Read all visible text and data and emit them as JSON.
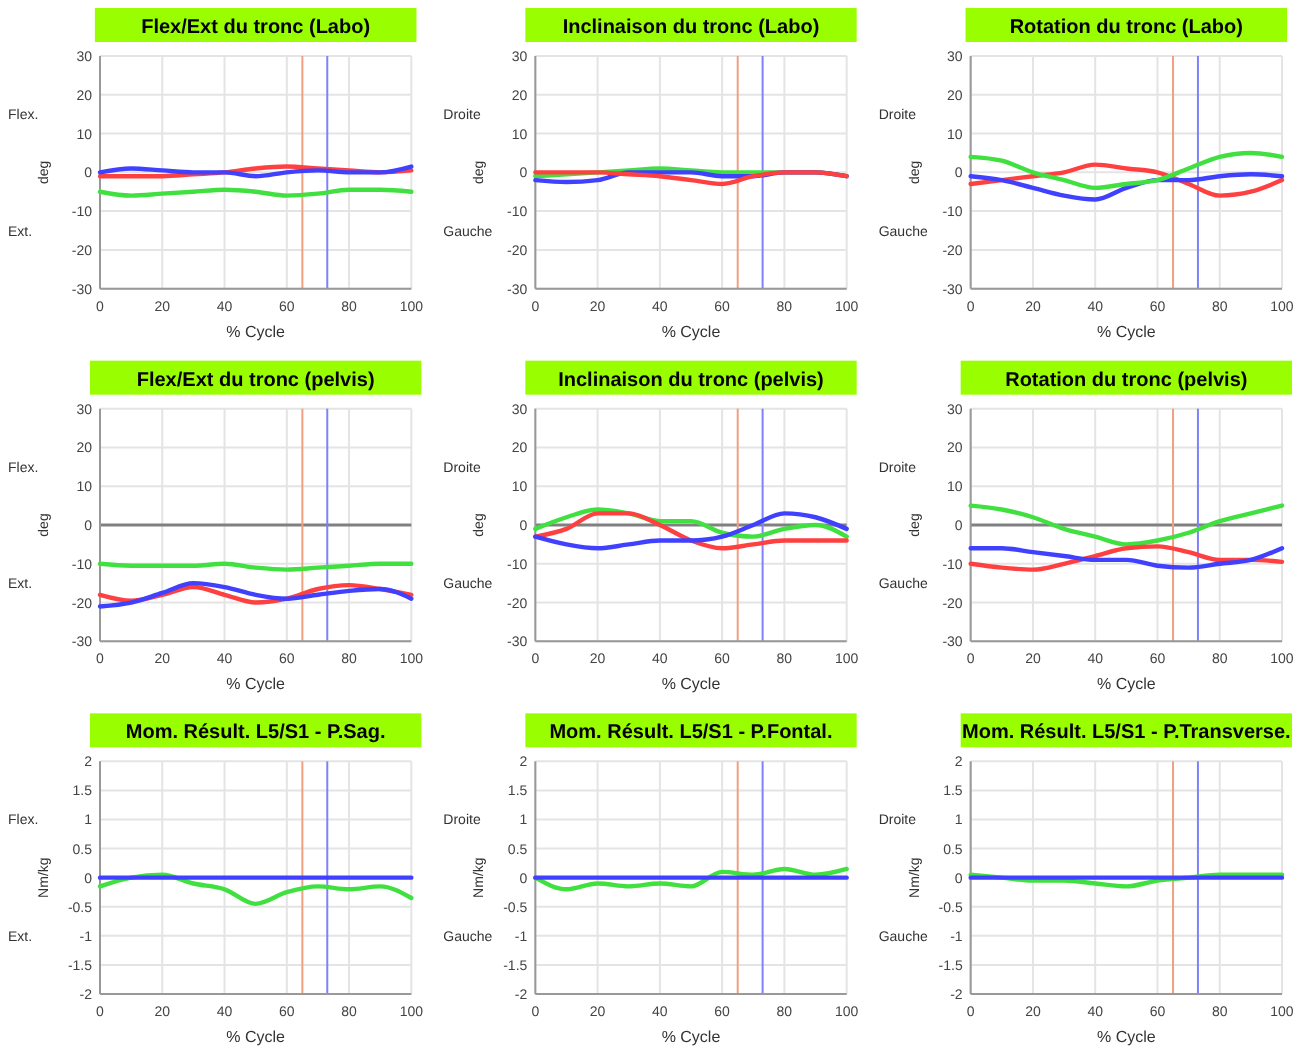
{
  "chart_data": [
    {
      "type": "line",
      "title": "Flex/Ext du tronc (Labo)",
      "xlabel": "% Cycle",
      "ylabel": "deg",
      "annotations": [
        "Flex.",
        "Ext."
      ],
      "x": [
        0,
        10,
        20,
        30,
        40,
        50,
        60,
        70,
        80,
        90,
        100
      ],
      "xlim": [
        0,
        100
      ],
      "xticks": [
        0,
        20,
        40,
        60,
        80,
        100
      ],
      "ylim": [
        -30,
        30
      ],
      "yticks": [
        -30,
        -20,
        -10,
        0,
        10,
        20,
        30
      ],
      "grid": true,
      "line_style": "solid",
      "ref_lines": [
        {
          "axis": "x",
          "value": 65,
          "color": "#f0a080"
        },
        {
          "axis": "x",
          "value": 73,
          "color": "#8080ff"
        }
      ],
      "series": [
        {
          "color": "#ff4040",
          "values": [
            -1,
            -1,
            -1,
            -0.5,
            0,
            1,
            1.5,
            1,
            0.5,
            0,
            0.5
          ]
        },
        {
          "color": "#4040ff",
          "values": [
            0,
            1,
            0.5,
            0,
            0,
            -1,
            0,
            0.5,
            0,
            0,
            1.5
          ]
        },
        {
          "color": "#40e040",
          "values": [
            -5,
            -6,
            -5.5,
            -5,
            -4.5,
            -5,
            -6,
            -5.5,
            -4.5,
            -4.5,
            -5
          ]
        }
      ]
    },
    {
      "type": "line",
      "title": "Inclinaison du tronc (Labo)",
      "xlabel": "% Cycle",
      "ylabel": "deg",
      "annotations": [
        "Droite",
        "Gauche"
      ],
      "x": [
        0,
        10,
        20,
        30,
        40,
        50,
        60,
        70,
        80,
        90,
        100
      ],
      "xlim": [
        0,
        100
      ],
      "xticks": [
        0,
        20,
        40,
        60,
        80,
        100
      ],
      "ylim": [
        -30,
        30
      ],
      "yticks": [
        -30,
        -20,
        -10,
        0,
        10,
        20,
        30
      ],
      "grid": true,
      "line_style": "solid",
      "ref_lines": [
        {
          "axis": "x",
          "value": 65,
          "color": "#f0a080"
        },
        {
          "axis": "x",
          "value": 73,
          "color": "#8080ff"
        }
      ],
      "series": [
        {
          "color": "#40e040",
          "values": [
            -1,
            -0.5,
            0,
            0.5,
            1,
            0.5,
            0,
            0,
            0,
            0,
            -1
          ]
        },
        {
          "color": "#4040ff",
          "values": [
            -2,
            -2.5,
            -2,
            0,
            0,
            0,
            -1,
            -1,
            0,
            0,
            -1
          ]
        },
        {
          "color": "#ff4040",
          "values": [
            0,
            0,
            0,
            -0.5,
            -1,
            -2,
            -3,
            -1,
            0,
            0,
            -1
          ]
        }
      ]
    },
    {
      "type": "line",
      "title": "Rotation du tronc (Labo)",
      "xlabel": "% Cycle",
      "ylabel": "deg",
      "annotations": [
        "Droite",
        "Gauche"
      ],
      "x": [
        0,
        10,
        20,
        30,
        40,
        50,
        60,
        70,
        80,
        90,
        100
      ],
      "xlim": [
        0,
        100
      ],
      "xticks": [
        0,
        20,
        40,
        60,
        80,
        100
      ],
      "ylim": [
        -30,
        30
      ],
      "yticks": [
        -30,
        -20,
        -10,
        0,
        10,
        20,
        30
      ],
      "grid": true,
      "line_style": "solid",
      "ref_lines": [
        {
          "axis": "x",
          "value": 65,
          "color": "#f0a080"
        },
        {
          "axis": "x",
          "value": 73,
          "color": "#8080ff"
        }
      ],
      "series": [
        {
          "color": "#ff4040",
          "values": [
            -3,
            -2,
            -1,
            0,
            2,
            1,
            0,
            -3,
            -6,
            -5,
            -2
          ]
        },
        {
          "color": "#4040ff",
          "values": [
            -1,
            -2,
            -4,
            -6,
            -7,
            -4,
            -2,
            -2,
            -1,
            -0.5,
            -1
          ]
        },
        {
          "color": "#40e040",
          "values": [
            4,
            3,
            0,
            -2,
            -4,
            -3,
            -2,
            1,
            4,
            5,
            4
          ]
        }
      ]
    },
    {
      "type": "line",
      "title": "Flex/Ext du tronc (pelvis)",
      "xlabel": "% Cycle",
      "ylabel": "deg",
      "annotations": [
        "Flex.",
        "Ext."
      ],
      "x": [
        0,
        10,
        20,
        30,
        40,
        50,
        60,
        70,
        80,
        90,
        100
      ],
      "xlim": [
        0,
        100
      ],
      "xticks": [
        0,
        20,
        40,
        60,
        80,
        100
      ],
      "ylim": [
        -30,
        30
      ],
      "yticks": [
        -30,
        -20,
        -10,
        0,
        10,
        20,
        30
      ],
      "grid": true,
      "line_style": "solid",
      "ref_lines": [
        {
          "axis": "y",
          "value": 0,
          "color": "#808080"
        },
        {
          "axis": "x",
          "value": 65,
          "color": "#f0a080"
        },
        {
          "axis": "x",
          "value": 73,
          "color": "#8080ff"
        }
      ],
      "series": [
        {
          "color": "#40e040",
          "values": [
            -10,
            -10.5,
            -10.5,
            -10.5,
            -10,
            -11,
            -11.5,
            -11,
            -10.5,
            -10,
            -10
          ]
        },
        {
          "color": "#ff4040",
          "values": [
            -18,
            -19.5,
            -18,
            -16,
            -18,
            -20,
            -19,
            -16.5,
            -15.5,
            -16.5,
            -18
          ]
        },
        {
          "color": "#4040ff",
          "values": [
            -21,
            -20,
            -17.5,
            -15,
            -16,
            -18,
            -19,
            -18,
            -17,
            -16.5,
            -19
          ]
        }
      ]
    },
    {
      "type": "line",
      "title": "Inclinaison du tronc (pelvis)",
      "xlabel": "% Cycle",
      "ylabel": "deg",
      "annotations": [
        "Droite",
        "Gauche"
      ],
      "x": [
        0,
        10,
        20,
        30,
        40,
        50,
        60,
        70,
        80,
        90,
        100
      ],
      "xlim": [
        0,
        100
      ],
      "xticks": [
        0,
        20,
        40,
        60,
        80,
        100
      ],
      "ylim": [
        -30,
        30
      ],
      "yticks": [
        -30,
        -20,
        -10,
        0,
        10,
        20,
        30
      ],
      "grid": true,
      "line_style": "solid",
      "ref_lines": [
        {
          "axis": "y",
          "value": 0,
          "color": "#808080"
        },
        {
          "axis": "x",
          "value": 65,
          "color": "#f0a080"
        },
        {
          "axis": "x",
          "value": 73,
          "color": "#8080ff"
        }
      ],
      "series": [
        {
          "color": "#40e040",
          "values": [
            -1,
            2,
            4,
            3,
            1,
            1,
            -2,
            -3,
            -1,
            0,
            -3
          ]
        },
        {
          "color": "#ff4040",
          "values": [
            -3,
            -1,
            3,
            3,
            0,
            -4,
            -6,
            -5,
            -4,
            -4,
            -4
          ]
        },
        {
          "color": "#4040ff",
          "values": [
            -3,
            -5,
            -6,
            -5,
            -4,
            -4,
            -3,
            0,
            3,
            2,
            -1
          ]
        }
      ]
    },
    {
      "type": "line",
      "title": "Rotation du tronc (pelvis)",
      "xlabel": "% Cycle",
      "ylabel": "deg",
      "annotations": [
        "Droite",
        "Gauche"
      ],
      "x": [
        0,
        10,
        20,
        30,
        40,
        50,
        60,
        70,
        80,
        90,
        100
      ],
      "xlim": [
        0,
        100
      ],
      "xticks": [
        0,
        20,
        40,
        60,
        80,
        100
      ],
      "ylim": [
        -30,
        30
      ],
      "yticks": [
        -30,
        -20,
        -10,
        0,
        10,
        20,
        30
      ],
      "grid": true,
      "line_style": "solid",
      "ref_lines": [
        {
          "axis": "y",
          "value": 0,
          "color": "#808080"
        },
        {
          "axis": "x",
          "value": 65,
          "color": "#f0a080"
        },
        {
          "axis": "x",
          "value": 73,
          "color": "#8080ff"
        }
      ],
      "series": [
        {
          "color": "#40e040",
          "values": [
            5,
            4,
            2,
            -1,
            -3,
            -5,
            -4,
            -2,
            1,
            3,
            5
          ]
        },
        {
          "color": "#ff4040",
          "values": [
            -10,
            -11,
            -11.5,
            -10,
            -8,
            -6,
            -5.5,
            -7,
            -9,
            -9,
            -9.5
          ]
        },
        {
          "color": "#4040ff",
          "values": [
            -6,
            -6,
            -7,
            -8,
            -9,
            -9,
            -10.5,
            -11,
            -10,
            -9,
            -6
          ]
        }
      ]
    },
    {
      "type": "line",
      "title": "Mom. Résult. L5/S1 - P.Sag.",
      "xlabel": "% Cycle",
      "ylabel": "Nm/kg",
      "annotations": [
        "Flex.",
        "Ext."
      ],
      "x": [
        0,
        10,
        20,
        30,
        40,
        50,
        60,
        70,
        80,
        90,
        100
      ],
      "xlim": [
        0,
        100
      ],
      "xticks": [
        0,
        20,
        40,
        60,
        80,
        100
      ],
      "ylim": [
        -2,
        2
      ],
      "yticks": [
        -2,
        -1.5,
        -1,
        -0.5,
        0,
        0.5,
        1,
        1.5,
        2
      ],
      "grid": true,
      "line_style": "solid",
      "ref_lines": [
        {
          "axis": "x",
          "value": 65,
          "color": "#f0a080"
        },
        {
          "axis": "x",
          "value": 73,
          "color": "#8080ff"
        }
      ],
      "series": [
        {
          "color": "#40e040",
          "values": [
            -0.15,
            0,
            0.05,
            -0.1,
            -0.2,
            -0.45,
            -0.25,
            -0.15,
            -0.2,
            -0.15,
            -0.35
          ]
        },
        {
          "color": "#4040ff",
          "values": [
            0,
            0,
            0,
            0,
            0,
            0,
            0,
            0,
            0,
            0,
            0
          ]
        }
      ]
    },
    {
      "type": "line",
      "title": "Mom. Résult. L5/S1 - P.Fontal.",
      "xlabel": "% Cycle",
      "ylabel": "Nm/kg",
      "annotations": [
        "Droite",
        "Gauche"
      ],
      "x": [
        0,
        10,
        20,
        30,
        40,
        50,
        60,
        70,
        80,
        90,
        100
      ],
      "xlim": [
        0,
        100
      ],
      "xticks": [
        0,
        20,
        40,
        60,
        80,
        100
      ],
      "ylim": [
        -2,
        2
      ],
      "yticks": [
        -2,
        -1.5,
        -1,
        -0.5,
        0,
        0.5,
        1,
        1.5,
        2
      ],
      "grid": true,
      "line_style": "solid",
      "ref_lines": [
        {
          "axis": "x",
          "value": 65,
          "color": "#f0a080"
        },
        {
          "axis": "x",
          "value": 73,
          "color": "#8080ff"
        }
      ],
      "series": [
        {
          "color": "#40e040",
          "values": [
            0,
            -0.2,
            -0.1,
            -0.15,
            -0.1,
            -0.15,
            0.1,
            0.05,
            0.15,
            0.05,
            0.15
          ]
        },
        {
          "color": "#4040ff",
          "values": [
            0,
            0,
            0,
            0,
            0,
            0,
            0,
            0,
            0,
            0,
            0
          ]
        }
      ]
    },
    {
      "type": "line",
      "title": "Mom. Résult. L5/S1 - P.Transverse.",
      "xlabel": "% Cycle",
      "ylabel": "Nm/kg",
      "annotations": [
        "Droite",
        "Gauche"
      ],
      "x": [
        0,
        10,
        20,
        30,
        40,
        50,
        60,
        70,
        80,
        90,
        100
      ],
      "xlim": [
        0,
        100
      ],
      "xticks": [
        0,
        20,
        40,
        60,
        80,
        100
      ],
      "ylim": [
        -2,
        2
      ],
      "yticks": [
        -2,
        -1.5,
        -1,
        -0.5,
        0,
        0.5,
        1,
        1.5,
        2
      ],
      "grid": true,
      "line_style": "solid",
      "ref_lines": [
        {
          "axis": "x",
          "value": 65,
          "color": "#f0a080"
        },
        {
          "axis": "x",
          "value": 73,
          "color": "#8080ff"
        }
      ],
      "series": [
        {
          "color": "#40e040",
          "values": [
            0.05,
            0,
            -0.05,
            -0.05,
            -0.1,
            -0.15,
            -0.05,
            0,
            0.05,
            0.05,
            0.05
          ]
        },
        {
          "color": "#4040ff",
          "values": [
            0,
            0,
            0,
            0,
            0,
            0,
            0,
            0,
            0,
            0,
            0
          ]
        }
      ]
    }
  ]
}
